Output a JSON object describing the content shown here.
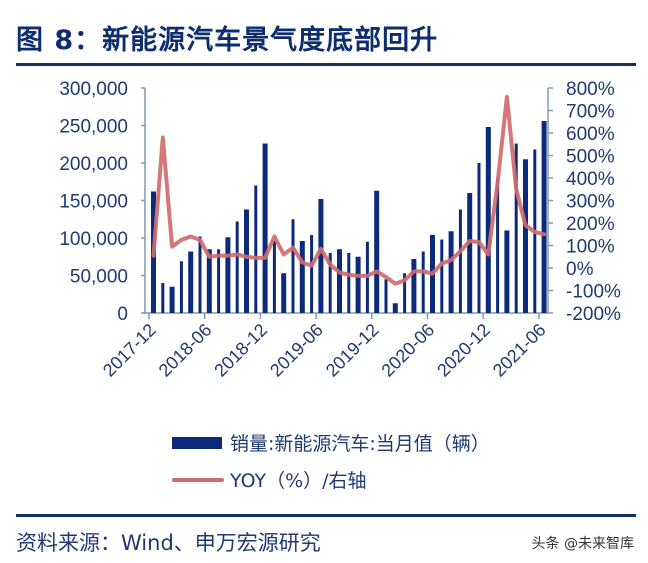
{
  "header": {
    "title": "图 8：新能源汽车景气度底部回升"
  },
  "footer": {
    "source": "资料来源：Wind、申万宏源研究",
    "watermark": "头条 @未来智库"
  },
  "legend": {
    "bar_label": "销量:新能源汽车:当月值（辆）",
    "line_label": "YOY（%）/右轴"
  },
  "colors": {
    "bar": "#0b2a7a",
    "line": "#cf6b6e",
    "axis": "#7f9bb3",
    "text": "#1e3b70",
    "title": "#0e2d6e"
  },
  "chart_data": {
    "type": "bar",
    "title": "图 8：新能源汽车景气度底部回升",
    "xlabel": "",
    "ylabel": "",
    "x_tick_labels": [
      "2017-12",
      "2018-06",
      "2018-12",
      "2019-06",
      "2019-12",
      "2020-06",
      "2020-12",
      "2021-06"
    ],
    "y_left": {
      "ticks": [
        "0",
        "50,000",
        "100,000",
        "150,000",
        "200,000",
        "250,000",
        "300,000"
      ],
      "ylim": [
        0,
        300000
      ]
    },
    "y_right": {
      "ticks": [
        "-200%",
        "-100%",
        "0%",
        "100%",
        "200%",
        "300%",
        "400%",
        "500%",
        "600%",
        "700%",
        "800%"
      ],
      "ylim": [
        -200,
        800
      ]
    },
    "legend_position": "bottom",
    "grid": false,
    "categories": [
      "2017-12",
      "2018-01",
      "2018-02",
      "2018-03",
      "2018-04",
      "2018-05",
      "2018-06",
      "2018-07",
      "2018-08",
      "2018-09",
      "2018-10",
      "2018-11",
      "2018-12",
      "2019-01",
      "2019-02",
      "2019-03",
      "2019-04",
      "2019-05",
      "2019-06",
      "2019-07",
      "2019-08",
      "2019-09",
      "2019-10",
      "2019-11",
      "2019-12",
      "2020-01",
      "2020-02",
      "2020-03",
      "2020-04",
      "2020-05",
      "2020-06",
      "2020-07",
      "2020-08",
      "2020-09",
      "2020-10",
      "2020-11",
      "2020-12",
      "2021-01",
      "2021-02",
      "2021-03",
      "2021-04",
      "2021-05",
      "2021-06"
    ],
    "series": [
      {
        "name": "销量:新能源汽车:当月值（辆）",
        "type": "bar",
        "axis": "left",
        "values": [
          162000,
          40000,
          35000,
          69000,
          82000,
          102000,
          85000,
          85000,
          101000,
          122000,
          138000,
          170000,
          226000,
          96000,
          53000,
          125000,
          96000,
          104000,
          152000,
          80000,
          85000,
          80000,
          75000,
          95000,
          163000,
          45000,
          13000,
          53000,
          72000,
          82000,
          104000,
          98000,
          109000,
          138000,
          160000,
          200000,
          248000,
          179000,
          110000,
          226000,
          205000,
          218000,
          256000
        ]
      },
      {
        "name": "YOY（%）/右轴",
        "type": "line",
        "axis": "right",
        "values": [
          55,
          580,
          95,
          125,
          140,
          125,
          50,
          55,
          55,
          60,
          50,
          45,
          45,
          140,
          60,
          90,
          25,
          10,
          85,
          15,
          -20,
          -30,
          -35,
          -35,
          -15,
          -40,
          -70,
          -55,
          -15,
          -15,
          -25,
          20,
          35,
          75,
          120,
          115,
          60,
          380,
          760,
          350,
          190,
          160,
          150
        ]
      }
    ]
  }
}
